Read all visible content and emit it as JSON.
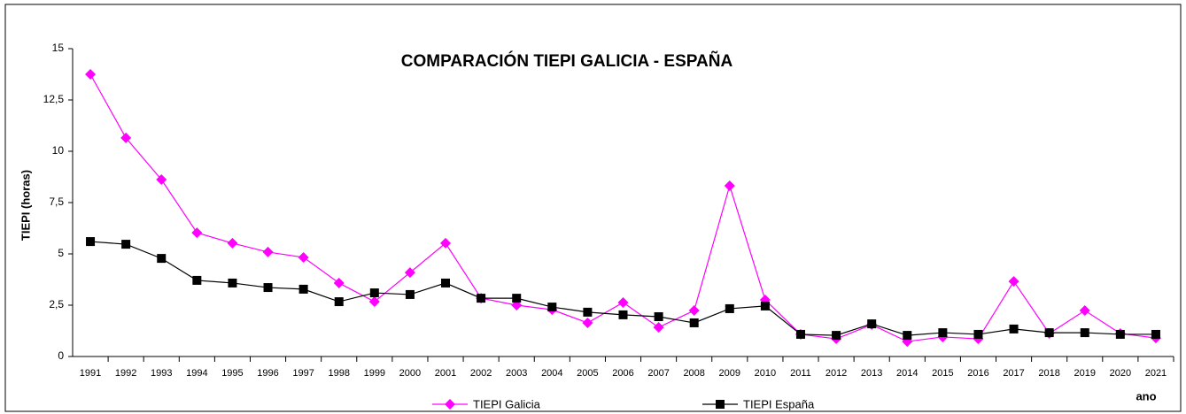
{
  "chart_data": {
    "type": "line",
    "title": "COMPARACIÓN TIEPI GALICIA - ESPAÑA",
    "y_label": "TIEPI (horas)",
    "x_label": "ano",
    "categories": [
      "1991",
      "1992",
      "1993",
      "1994",
      "1995",
      "1996",
      "1997",
      "1998",
      "1999",
      "2000",
      "2001",
      "2002",
      "2003",
      "2004",
      "2005",
      "2006",
      "2007",
      "2008",
      "2009",
      "2010",
      "2011",
      "2012",
      "2013",
      "2014",
      "2015",
      "2016",
      "2017",
      "2018",
      "2019",
      "2020",
      "2021"
    ],
    "series": [
      {
        "name": "TIEPI Galicia",
        "color": "#ff00ff",
        "marker": "diamond",
        "values": [
          13.75,
          10.65,
          8.62,
          6.03,
          5.52,
          5.09,
          4.83,
          3.58,
          2.67,
          4.09,
          5.52,
          2.84,
          2.5,
          2.28,
          1.64,
          2.63,
          1.42,
          2.24,
          8.32,
          2.76,
          1.08,
          0.86,
          1.55,
          0.73,
          0.95,
          0.86,
          3.66,
          1.12,
          2.24,
          1.12,
          0.9
        ]
      },
      {
        "name": "TIEPI España",
        "color": "#000000",
        "marker": "square",
        "values": [
          5.6,
          5.47,
          4.78,
          3.71,
          3.58,
          3.36,
          3.28,
          2.67,
          3.1,
          3.02,
          3.58,
          2.84,
          2.84,
          2.41,
          2.16,
          2.03,
          1.94,
          1.64,
          2.33,
          2.46,
          1.08,
          1.03,
          1.59,
          1.03,
          1.16,
          1.08,
          1.34,
          1.16,
          1.16,
          1.08,
          1.08
        ]
      }
    ],
    "ylim": [
      0,
      15
    ],
    "yticks": [
      0,
      {
        "value": 2.5,
        "label": "2,5"
      },
      5,
      {
        "value": 7.5,
        "label": "7,5"
      },
      10,
      {
        "value": 12.5,
        "label": "12,5"
      },
      15
    ],
    "grid": false,
    "legend": "bottom"
  }
}
